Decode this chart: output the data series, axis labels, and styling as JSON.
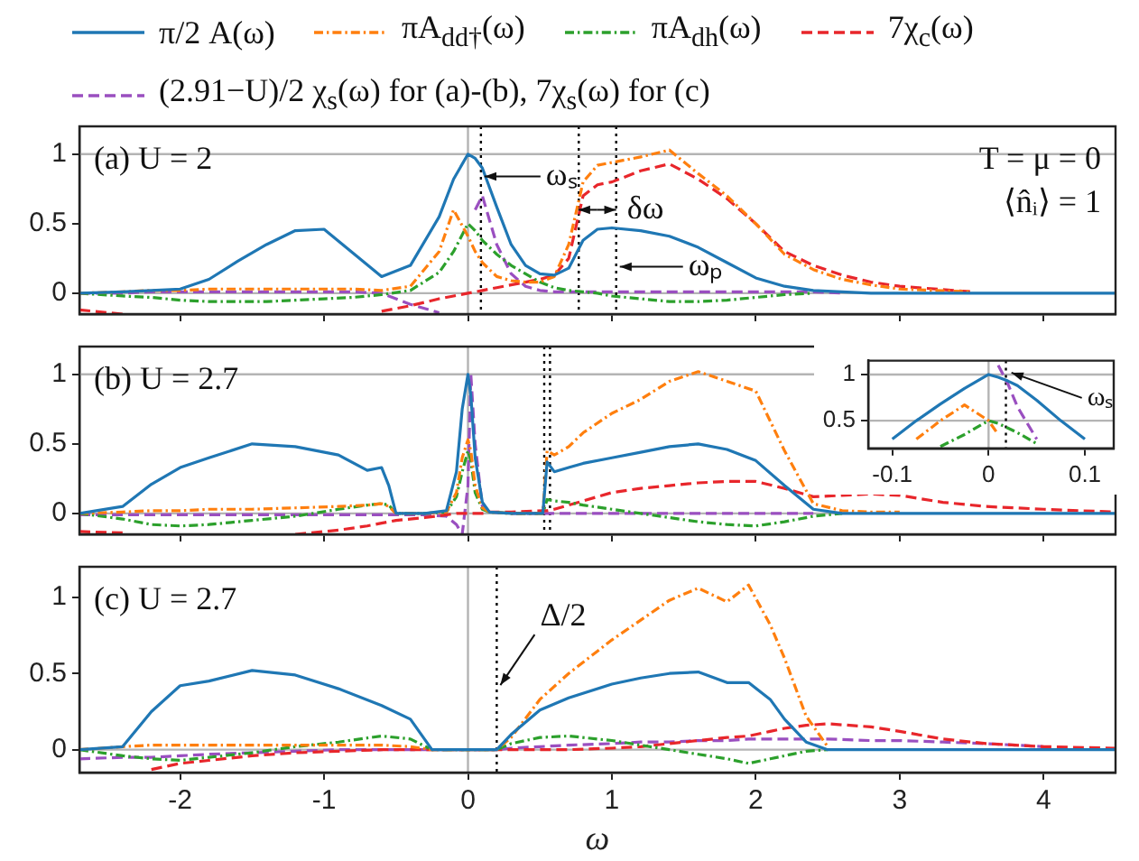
{
  "chart_data": [
    {
      "type": "line",
      "legend": "top",
      "tick_labels": "y",
      "xlim": [
        -2.7,
        4.5
      ],
      "ylim": [
        -0.15,
        1.2
      ],
      "xticks": [
        -2,
        -1,
        0,
        1,
        2,
        3,
        4
      ],
      "yticks": [
        0,
        0.5,
        1
      ],
      "x": [
        -2.7,
        -2.4,
        -2.2,
        -2.0,
        -1.8,
        -1.6,
        -1.4,
        -1.2,
        -1.0,
        -0.8,
        -0.6,
        -0.4,
        -0.2,
        -0.1,
        0,
        0.05,
        0.1,
        0.2,
        0.3,
        0.4,
        0.5,
        0.6,
        0.7,
        0.8,
        0.9,
        1.0,
        1.2,
        1.4,
        1.6,
        1.8,
        2.0,
        2.2,
        2.4,
        2.6,
        2.8,
        3.0,
        3.5,
        4.0,
        4.5
      ],
      "series": [
        {
          "name": "π/2 A(ω)",
          "color": "#1f77b4",
          "line_style": "solid",
          "values": [
            0,
            0.01,
            0.02,
            0.03,
            0.1,
            0.23,
            0.35,
            0.45,
            0.46,
            0.29,
            0.12,
            0.2,
            0.55,
            0.82,
            1.0,
            0.97,
            0.9,
            0.62,
            0.35,
            0.2,
            0.14,
            0.13,
            0.18,
            0.38,
            0.46,
            0.47,
            0.45,
            0.41,
            0.33,
            0.22,
            0.11,
            0.05,
            0.02,
            0.01,
            0,
            0,
            0,
            0,
            0
          ]
        },
        {
          "name": "πA$_{dd†}$(ω)",
          "color": "#ff7f0e",
          "line_style": "dashdot",
          "values": [
            0,
            0.01,
            0.02,
            0.02,
            0.03,
            0.03,
            0.03,
            0.03,
            0.03,
            0.03,
            0.02,
            0.05,
            0.3,
            0.6,
            0.41,
            0.3,
            0.22,
            0.12,
            0.09,
            0.08,
            0.08,
            0.12,
            0.35,
            0.8,
            0.92,
            0.94,
            0.98,
            1.03,
            0.86,
            0.7,
            0.5,
            0.28,
            0.17,
            0.1,
            0.06,
            0.03,
            0.01,
            null,
            null
          ]
        },
        {
          "name": "πA$_{dh}$(ω)",
          "color": "#2ca02c",
          "line_style": "dashdot",
          "values": [
            0,
            -0.02,
            -0.03,
            -0.05,
            -0.06,
            -0.06,
            -0.06,
            -0.05,
            -0.04,
            -0.03,
            -0.01,
            0.02,
            0.15,
            0.3,
            0.5,
            0.45,
            0.38,
            0.28,
            0.2,
            0.14,
            0.08,
            0.04,
            0.02,
            0.01,
            0,
            -0.02,
            -0.04,
            -0.06,
            -0.06,
            -0.05,
            -0.03,
            -0.01,
            0,
            null,
            null,
            null,
            null,
            null,
            null
          ]
        },
        {
          "name": "7χ$_{c}$(ω)",
          "color": "#e8262b",
          "line_style": "dashed",
          "values": [
            -0.12,
            -0.15,
            null,
            null,
            null,
            null,
            null,
            null,
            null,
            null,
            -0.13,
            -0.09,
            -0.04,
            -0.02,
            0,
            0.01,
            0.02,
            0.04,
            0.06,
            0.08,
            0.1,
            0.13,
            0.25,
            0.7,
            0.78,
            0.8,
            0.88,
            0.93,
            0.82,
            0.68,
            0.5,
            0.3,
            0.2,
            0.13,
            0.08,
            0.05,
            0.01,
            null,
            null
          ]
        },
        {
          "name": "(2.91−U)/2 χ$_{s}$(ω) for (a)-(b), 7χ$_{s}$(ω) for (c)",
          "color": "#9a4fc0",
          "line_style": "dashed",
          "values": [
            0,
            0,
            0.01,
            0.01,
            0.01,
            0.01,
            0.01,
            0.01,
            0.01,
            0.01,
            0,
            -0.08,
            -0.14,
            null,
            null,
            0.6,
            0.7,
            0.35,
            0.14,
            0.05,
            0.02,
            0.01,
            0.01,
            0.01,
            0.01,
            0.01,
            0.01,
            0.01,
            0.01,
            0.01,
            0.01,
            0.01,
            0.01,
            0,
            null,
            null,
            null,
            null,
            null
          ]
        }
      ],
      "ref_lines": [
        {
          "axis": "y",
          "value": 0,
          "color": "#b4b4b4",
          "line_style": "solid"
        },
        {
          "axis": "y",
          "value": 1,
          "color": "#b4b4b4",
          "line_style": "solid"
        },
        {
          "axis": "x",
          "value": 0,
          "color": "#b4b4b4",
          "line_style": "solid"
        },
        {
          "axis": "x",
          "value": 0.09,
          "color": "#000000",
          "line_style": "dotted"
        },
        {
          "axis": "x",
          "value": 0.77,
          "color": "#000000",
          "line_style": "dotted"
        },
        {
          "axis": "x",
          "value": 1.03,
          "color": "#000000",
          "line_style": "dotted"
        }
      ],
      "annotations": [
        "(a) U = 2",
        "T = μ = 0",
        "⟨n̂ᵢ⟩ = 1",
        {
          "text": "ωₛ",
          "x": 0.09,
          "y": 0.84
        },
        {
          "text": "δω",
          "x": 1.03,
          "y": 0.6
        },
        {
          "text": "ωₚ",
          "x": 1.03,
          "y": 0.19
        }
      ]
    },
    {
      "type": "line",
      "tick_labels": "y",
      "xlim": [
        -2.7,
        4.5
      ],
      "ylim": [
        -0.15,
        1.2
      ],
      "xticks": [
        -2,
        -1,
        0,
        1,
        2,
        3,
        4
      ],
      "yticks": [
        0,
        0.5,
        1
      ],
      "x": [
        -2.7,
        -2.4,
        -2.2,
        -2.0,
        -1.8,
        -1.5,
        -1.2,
        -0.9,
        -0.7,
        -0.6,
        -0.55,
        -0.5,
        -0.3,
        -0.15,
        -0.08,
        -0.04,
        0,
        0.02,
        0.05,
        0.1,
        0.15,
        0.3,
        0.52,
        0.55,
        0.6,
        0.7,
        0.8,
        1.0,
        1.2,
        1.4,
        1.6,
        1.8,
        2.0,
        2.2,
        2.4,
        2.6,
        2.8,
        3.0,
        3.3,
        3.6,
        4.0,
        4.5
      ],
      "series": [
        {
          "color": "#1f77b4",
          "line_style": "solid",
          "values": [
            0,
            0.05,
            0.21,
            0.33,
            0.4,
            0.5,
            0.48,
            0.42,
            0.31,
            0.33,
            0.2,
            0,
            0,
            0.02,
            0.3,
            0.75,
            1.0,
            0.85,
            0.4,
            0.08,
            0.01,
            0,
            0,
            0.37,
            0.3,
            0.33,
            0.36,
            0.4,
            0.44,
            0.48,
            0.5,
            0.46,
            0.38,
            0.2,
            0.03,
            0,
            0,
            0,
            0,
            0,
            0,
            0
          ]
        },
        {
          "color": "#ff7f0e",
          "line_style": "dashdot",
          "values": [
            0,
            0.01,
            0.02,
            0.02,
            0.03,
            0.03,
            0.04,
            0.05,
            0.06,
            0.07,
            0.05,
            0,
            0,
            0.01,
            0.15,
            0.4,
            0.53,
            0.45,
            0.2,
            0.04,
            0.01,
            0,
            0,
            0.45,
            0.42,
            0.48,
            0.58,
            0.72,
            0.82,
            0.95,
            1.02,
            0.95,
            0.88,
            0.45,
            0.07,
            0.02,
            0.01,
            0.01,
            null,
            null,
            null,
            null
          ]
        },
        {
          "color": "#2ca02c",
          "line_style": "dashdot",
          "values": [
            0,
            -0.04,
            -0.08,
            -0.09,
            -0.08,
            -0.05,
            -0.02,
            0.03,
            0.06,
            0.07,
            0.06,
            0,
            0,
            0.01,
            0.12,
            0.3,
            0.45,
            0.38,
            0.15,
            0.03,
            0.01,
            0,
            0,
            0.1,
            0.09,
            0.08,
            0.06,
            0.03,
            0,
            -0.03,
            -0.06,
            -0.08,
            -0.09,
            -0.06,
            -0.02,
            0,
            null,
            null,
            null,
            null,
            null,
            null
          ]
        },
        {
          "color": "#e8262b",
          "line_style": "dashed",
          "values": [
            -0.13,
            -0.14,
            null,
            null,
            null,
            null,
            -0.15,
            -0.12,
            -0.09,
            -0.07,
            -0.06,
            -0.05,
            -0.03,
            -0.01,
            0,
            0,
            0,
            0,
            0,
            0,
            0.01,
            0.01,
            0.02,
            0.02,
            0.03,
            0.06,
            0.09,
            0.15,
            0.18,
            0.2,
            0.22,
            0.23,
            0.23,
            0.18,
            0.12,
            0.13,
            0.14,
            0.13,
            0.08,
            0.05,
            0.03,
            0.01
          ]
        },
        {
          "color": "#9a4fc0",
          "line_style": "dashed",
          "values": [
            -0.01,
            -0.01,
            -0.01,
            -0.01,
            -0.01,
            -0.01,
            -0.01,
            -0.01,
            -0.01,
            -0.01,
            -0.01,
            -0.01,
            -0.01,
            -0.02,
            -0.08,
            -0.15,
            0.2,
            1.0,
            0.5,
            0.05,
            0.01,
            0,
            0,
            0,
            0,
            0,
            0,
            0,
            0,
            0,
            0,
            0,
            0,
            0,
            0,
            null,
            null,
            null,
            null,
            null,
            null,
            null
          ]
        }
      ],
      "ref_lines": [
        {
          "axis": "y",
          "value": 0,
          "color": "#b4b4b4",
          "line_style": "solid"
        },
        {
          "axis": "y",
          "value": 1,
          "color": "#b4b4b4",
          "line_style": "solid"
        },
        {
          "axis": "x",
          "value": 0,
          "color": "#b4b4b4",
          "line_style": "solid"
        },
        {
          "axis": "x",
          "value": 0.53,
          "color": "#000000",
          "line_style": "dotted"
        },
        {
          "axis": "x",
          "value": 0.57,
          "color": "#000000",
          "line_style": "dotted"
        }
      ],
      "annotations": [
        "(b) U = 2.7"
      ]
    },
    {
      "type": "line",
      "xlabel": "ω",
      "xlim": [
        -2.7,
        4.5
      ],
      "ylim": [
        -0.15,
        1.2
      ],
      "xticks": [
        -2,
        -1,
        0,
        1,
        2,
        3,
        4
      ],
      "yticks": [
        0,
        0.5,
        1
      ],
      "x": [
        -2.7,
        -2.4,
        -2.2,
        -2.0,
        -1.8,
        -1.5,
        -1.2,
        -0.9,
        -0.6,
        -0.4,
        -0.25,
        0,
        0.2,
        0.3,
        0.5,
        0.7,
        1.0,
        1.2,
        1.4,
        1.6,
        1.8,
        1.95,
        2.1,
        2.2,
        2.35,
        2.5,
        2.8,
        3.0,
        3.3,
        3.6,
        4.0,
        4.5
      ],
      "series": [
        {
          "color": "#1f77b4",
          "line_style": "solid",
          "values": [
            0,
            0.02,
            0.25,
            0.42,
            0.45,
            0.52,
            0.49,
            0.4,
            0.29,
            0.2,
            0,
            0,
            0,
            0.1,
            0.26,
            0.34,
            0.43,
            0.47,
            0.5,
            0.51,
            0.44,
            0.44,
            0.33,
            0.2,
            0.05,
            0,
            0,
            0,
            0,
            0,
            0,
            0
          ]
        },
        {
          "color": "#ff7f0e",
          "line_style": "dashdot",
          "values": [
            0,
            0.02,
            0.03,
            0.03,
            0.03,
            0.03,
            0.03,
            0.03,
            0.03,
            0.02,
            0,
            0,
            0,
            0.08,
            0.33,
            0.5,
            0.72,
            0.85,
            0.98,
            1.06,
            0.97,
            1.08,
            0.82,
            0.6,
            0.22,
            0.02,
            null,
            null,
            null,
            null,
            null,
            null
          ]
        },
        {
          "color": "#2ca02c",
          "line_style": "dashdot",
          "values": [
            0,
            -0.04,
            -0.06,
            -0.07,
            -0.05,
            -0.02,
            0.02,
            0.05,
            0.09,
            0.07,
            0,
            0,
            0,
            0.04,
            0.08,
            0.09,
            0.06,
            0.03,
            0,
            -0.03,
            -0.06,
            -0.09,
            -0.06,
            -0.04,
            -0.01,
            0,
            null,
            null,
            null,
            null,
            null,
            null
          ]
        },
        {
          "color": "#e8262b",
          "line_style": "dashed",
          "values": [
            null,
            null,
            -0.13,
            -0.09,
            -0.07,
            -0.04,
            -0.02,
            -0.01,
            0,
            0,
            0,
            0,
            0,
            0,
            0,
            0,
            0.01,
            0.02,
            0.04,
            0.06,
            0.08,
            0.09,
            0.12,
            0.14,
            0.16,
            0.17,
            0.15,
            0.12,
            0.07,
            0.04,
            0.02,
            0.01
          ]
        },
        {
          "color": "#9a4fc0",
          "line_style": "dashed",
          "values": [
            -0.06,
            -0.05,
            -0.05,
            -0.04,
            -0.03,
            -0.02,
            -0.01,
            0,
            0,
            0,
            0,
            0,
            0,
            0.01,
            0.02,
            0.03,
            0.04,
            0.05,
            0.05,
            0.06,
            0.06,
            0.07,
            0.07,
            0.07,
            0.07,
            0.07,
            0.06,
            0.06,
            0.05,
            0.04,
            0.02,
            null
          ]
        }
      ],
      "ref_lines": [
        {
          "axis": "y",
          "value": 0,
          "color": "#b4b4b4",
          "line_style": "solid"
        },
        {
          "axis": "x",
          "value": 0,
          "color": "#b4b4b4",
          "line_style": "solid"
        },
        {
          "axis": "x",
          "value": 0.2,
          "color": "#000000",
          "line_style": "dotted"
        }
      ],
      "annotations": [
        "(c) U = 2.7",
        {
          "text": "Δ/2",
          "x": 0.2,
          "y": 0.4
        }
      ]
    },
    {
      "type": "line",
      "xlim": [
        -0.125,
        0.13
      ],
      "ylim": [
        0.2,
        1.15
      ],
      "xticks": [
        -0.1,
        0,
        0.1
      ],
      "yticks": [
        0.5,
        1
      ],
      "x": [
        -0.1,
        -0.075,
        -0.05,
        -0.025,
        0,
        0.01,
        0.02,
        0.03,
        0.05,
        0.075,
        0.1
      ],
      "series": [
        {
          "color": "#1f77b4",
          "line_style": "solid",
          "values": [
            0.3,
            0.5,
            0.68,
            0.85,
            1.0,
            0.97,
            0.93,
            0.88,
            0.72,
            0.5,
            0.3
          ]
        },
        {
          "color": "#ff7f0e",
          "line_style": "dashdot",
          "values": [
            null,
            0.3,
            0.5,
            0.67,
            0.5,
            0.35,
            null,
            null,
            null,
            null,
            null
          ]
        },
        {
          "color": "#2ca02c",
          "line_style": "dashdot",
          "values": [
            null,
            null,
            0.22,
            0.35,
            0.5,
            0.47,
            0.42,
            0.37,
            0.25,
            null,
            null
          ]
        },
        {
          "color": "#9a4fc0",
          "line_style": "dashed",
          "values": [
            null,
            null,
            null,
            null,
            null,
            1.1,
            0.9,
            0.65,
            0.3,
            null,
            null
          ]
        }
      ],
      "ref_lines": [
        {
          "axis": "y",
          "value": 0.5,
          "color": "#b4b4b4",
          "line_style": "solid"
        },
        {
          "axis": "y",
          "value": 1,
          "color": "#b4b4b4",
          "line_style": "solid"
        },
        {
          "axis": "x",
          "value": 0,
          "color": "#b4b4b4",
          "line_style": "solid"
        },
        {
          "axis": "x",
          "value": 0.018,
          "color": "#000000",
          "line_style": "dotted"
        }
      ],
      "annotations": [
        {
          "text": "ωₛ",
          "x": 0.02,
          "y": 1.02
        }
      ]
    }
  ]
}
